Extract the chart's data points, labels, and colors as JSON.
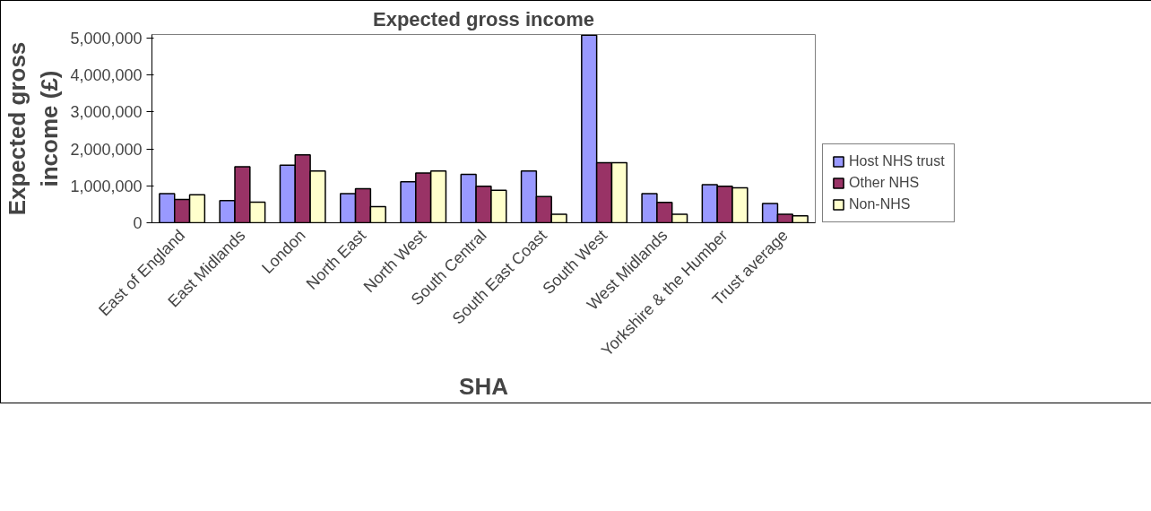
{
  "chart_data": {
    "type": "bar",
    "title": "Expected gross income",
    "xlabel": "SHA",
    "ylabel": "Expected gross income (£)",
    "categories": [
      "East of England",
      "East Midlands",
      "London",
      "North East",
      "North West",
      "South Central",
      "South East Coast",
      "South West",
      "West Midlands",
      "Yorkshire & the Humber",
      "Trust average"
    ],
    "series": [
      {
        "name": "Host NHS trust",
        "color": "#9999ff",
        "values": [
          790000,
          600000,
          1560000,
          790000,
          1110000,
          1310000,
          1400000,
          5080000,
          790000,
          1030000,
          520000
        ]
      },
      {
        "name": "Other NHS",
        "color": "#993366",
        "values": [
          630000,
          1520000,
          1840000,
          920000,
          1350000,
          990000,
          710000,
          1630000,
          550000,
          990000,
          230000
        ]
      },
      {
        "name": "Non-NHS",
        "color": "#ffffcc",
        "values": [
          760000,
          560000,
          1400000,
          440000,
          1400000,
          880000,
          230000,
          1630000,
          230000,
          950000,
          190000
        ]
      }
    ],
    "ylim": [
      0,
      5100000
    ],
    "yticks": [
      0,
      {
        "value": 1000000,
        "label": "1,000,000"
      },
      {
        "value": 2000000,
        "label": "2,000,000"
      },
      {
        "value": 3000000,
        "label": "3,000,000"
      },
      {
        "value": 4000000,
        "label": "4,000,000"
      },
      {
        "value": 5000000,
        "label": "5,000,000"
      }
    ],
    "grid": false,
    "legend": "bottom right"
  }
}
